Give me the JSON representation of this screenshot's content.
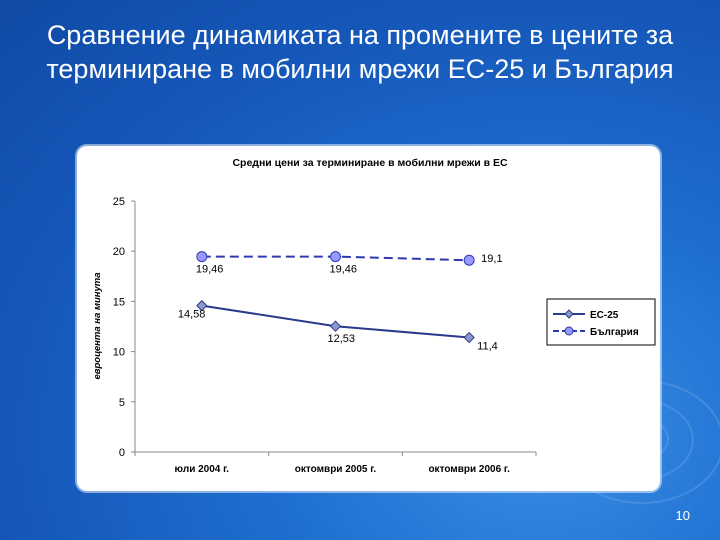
{
  "slide": {
    "title": "Сравнение динамиката на промените в цените за терминиране в мобилни мрежи ЕС-25 и България",
    "page_number": "10"
  },
  "chart_data": {
    "type": "line",
    "title": "Средни цени за терминиране в мобилни мрежи в ЕС",
    "xlabel": "",
    "ylabel": "евроцента на минута",
    "categories": [
      "юли 2004 г.",
      "октомври 2005 г.",
      "октомври 2006 г."
    ],
    "ylim": [
      0,
      25
    ],
    "yticks": [
      0,
      5,
      10,
      15,
      20,
      25
    ],
    "grid": false,
    "legend_position": "right",
    "series": [
      {
        "name": "ЕС-25",
        "values": [
          14.58,
          12.53,
          11.4
        ],
        "labels": [
          "14,58",
          "12,53",
          "11,4"
        ],
        "color": "#2b3a8c",
        "marker": "diamond",
        "line": "solid"
      },
      {
        "name": "България",
        "values": [
          19.46,
          19.46,
          19.1
        ],
        "labels": [
          "19,46",
          "19,46",
          "19,1"
        ],
        "color": "#2b3ab0",
        "marker": "circle",
        "marker_fill": "#9999ff",
        "line": "dashed"
      }
    ]
  }
}
